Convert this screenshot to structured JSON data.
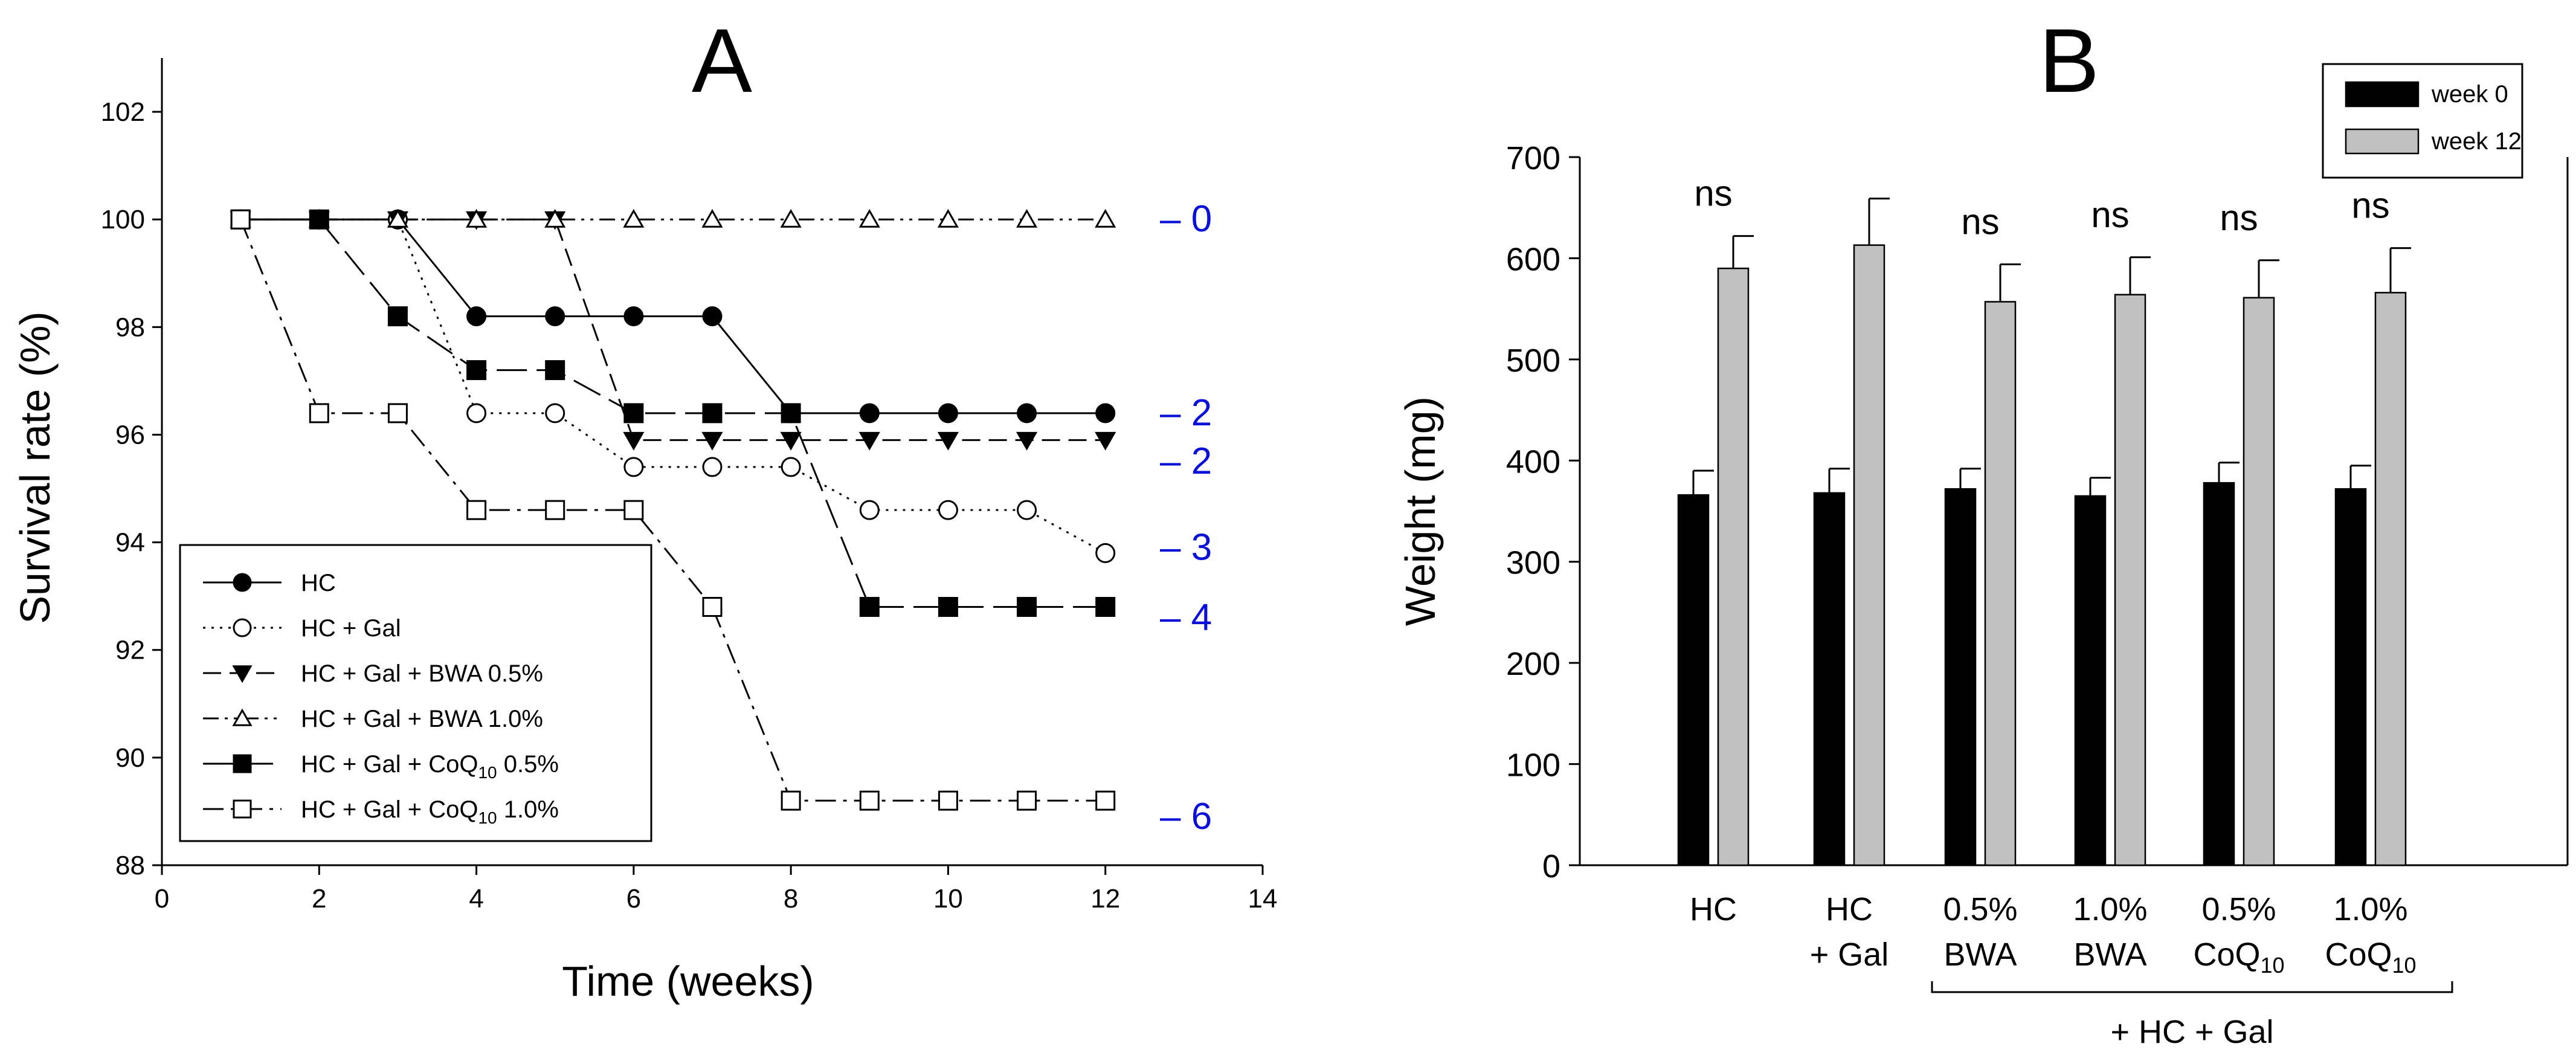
{
  "chart_data": [
    {
      "panel": "A",
      "type": "line",
      "xlabel": "Time (weeks)",
      "ylabel": "Survival rate (%)",
      "xlim": [
        0,
        14
      ],
      "ylim": [
        88,
        103
      ],
      "xticks": [
        0,
        2,
        4,
        6,
        8,
        10,
        12,
        14
      ],
      "yticks": [
        88,
        90,
        92,
        94,
        96,
        98,
        100,
        102
      ],
      "grid": false,
      "legend_position": "bottom-left",
      "series": [
        {
          "name": "HC",
          "marker": "filled-circle",
          "line": "solid",
          "x": [
            1,
            2,
            3,
            4,
            5,
            6,
            7,
            8,
            9,
            10,
            11,
            12
          ],
          "y": [
            100,
            100,
            100,
            98.2,
            98.2,
            98.2,
            98.2,
            96.4,
            96.4,
            96.4,
            96.4,
            96.4
          ]
        },
        {
          "name": "HC + Gal",
          "marker": "open-circle",
          "line": "dotted",
          "x": [
            1,
            2,
            3,
            4,
            5,
            6,
            7,
            8,
            9,
            10,
            11,
            12
          ],
          "y": [
            100,
            100,
            100,
            96.4,
            96.4,
            95.4,
            95.4,
            95.4,
            94.6,
            94.6,
            94.6,
            93.8
          ]
        },
        {
          "name": "HC + Gal + BWA 0.5%",
          "marker": "filled-triangle-down",
          "line": "dashed",
          "x": [
            1,
            2,
            3,
            4,
            5,
            6,
            7,
            8,
            9,
            10,
            11,
            12
          ],
          "y": [
            100,
            100,
            100,
            100,
            100,
            95.9,
            95.9,
            95.9,
            95.9,
            95.9,
            95.9,
            95.9
          ]
        },
        {
          "name": "HC + Gal + BWA 1.0%",
          "marker": "open-triangle-up",
          "line": "dash-dot-dot",
          "x": [
            1,
            2,
            3,
            4,
            5,
            6,
            7,
            8,
            9,
            10,
            11,
            12
          ],
          "y": [
            100,
            100,
            100,
            100,
            100,
            100,
            100,
            100,
            100,
            100,
            100,
            100
          ]
        },
        {
          "name": "HC + Gal + CoQ10 0.5%",
          "marker": "filled-square",
          "line": "long-dash",
          "x": [
            1,
            2,
            3,
            4,
            5,
            6,
            7,
            8,
            9,
            10,
            11,
            12
          ],
          "y": [
            100,
            100,
            98.2,
            97.2,
            97.2,
            96.4,
            96.4,
            96.4,
            92.8,
            92.8,
            92.8,
            92.8
          ]
        },
        {
          "name": "HC + Gal + CoQ10 1.0%",
          "marker": "open-square",
          "line": "dash-dot",
          "x": [
            1,
            2,
            3,
            4,
            5,
            6,
            7,
            8,
            9,
            10,
            11,
            12
          ],
          "y": [
            100,
            96.4,
            96.4,
            94.6,
            94.6,
            94.6,
            92.8,
            89.2,
            89.2,
            89.2,
            89.2,
            89.2
          ]
        }
      ],
      "legend": [
        {
          "prefix": "HC",
          "sub": "",
          "suffix": ""
        },
        {
          "prefix": "HC + Gal",
          "sub": "",
          "suffix": ""
        },
        {
          "prefix": "HC + Gal + BWA 0.5%",
          "sub": "",
          "suffix": ""
        },
        {
          "prefix": "HC + Gal + BWA 1.0%",
          "sub": "",
          "suffix": ""
        },
        {
          "prefix": "HC + Gal + CoQ",
          "sub": "10",
          "suffix": " 0.5%"
        },
        {
          "prefix": "HC + Gal + CoQ",
          "sub": "10",
          "suffix": " 1.0%"
        }
      ],
      "death_annotations": [
        {
          "label": "– 0",
          "y": 100
        },
        {
          "label": "– 2",
          "y": 96.4
        },
        {
          "label": "– 2",
          "y": 95.5
        },
        {
          "label": "– 3",
          "y": 93.9
        },
        {
          "label": "– 4",
          "y": 92.6
        },
        {
          "label": "– 6",
          "y": 88.9
        }
      ],
      "death_annotation_color": "#0a10d8"
    },
    {
      "panel": "B",
      "type": "bar",
      "ylabel": "Weight (mg)",
      "ylim": [
        0,
        700
      ],
      "yticks": [
        0,
        100,
        200,
        300,
        400,
        500,
        600,
        700
      ],
      "grid": false,
      "legend_position": "top-right",
      "categories": [
        {
          "line1": "HC",
          "line2": "",
          "line2_sub": ""
        },
        {
          "line1": "HC",
          "line2": "+ Gal",
          "line2_sub": ""
        },
        {
          "line1": "0.5%",
          "line2": "BWA",
          "line2_sub": ""
        },
        {
          "line1": "1.0%",
          "line2": "BWA",
          "line2_sub": ""
        },
        {
          "line1": "0.5%",
          "line2": "CoQ",
          "line2_sub": "10"
        },
        {
          "line1": "1.0%",
          "line2": "CoQ",
          "line2_sub": "10"
        }
      ],
      "series": [
        {
          "name": "week 0",
          "color": "#000000",
          "values": [
            366,
            368,
            372,
            365,
            378,
            372
          ],
          "errors": [
            24,
            24,
            20,
            18,
            20,
            23
          ]
        },
        {
          "name": "week 12",
          "color": "#c0c0c0",
          "values": [
            590,
            613,
            557,
            564,
            561,
            566
          ],
          "errors": [
            32,
            46,
            37,
            37,
            37,
            44
          ]
        }
      ],
      "annotations": [
        "ns",
        "",
        "ns",
        "ns",
        "ns",
        "ns"
      ],
      "group_label": "+ HC + Gal",
      "group_span": [
        2,
        5
      ]
    }
  ]
}
